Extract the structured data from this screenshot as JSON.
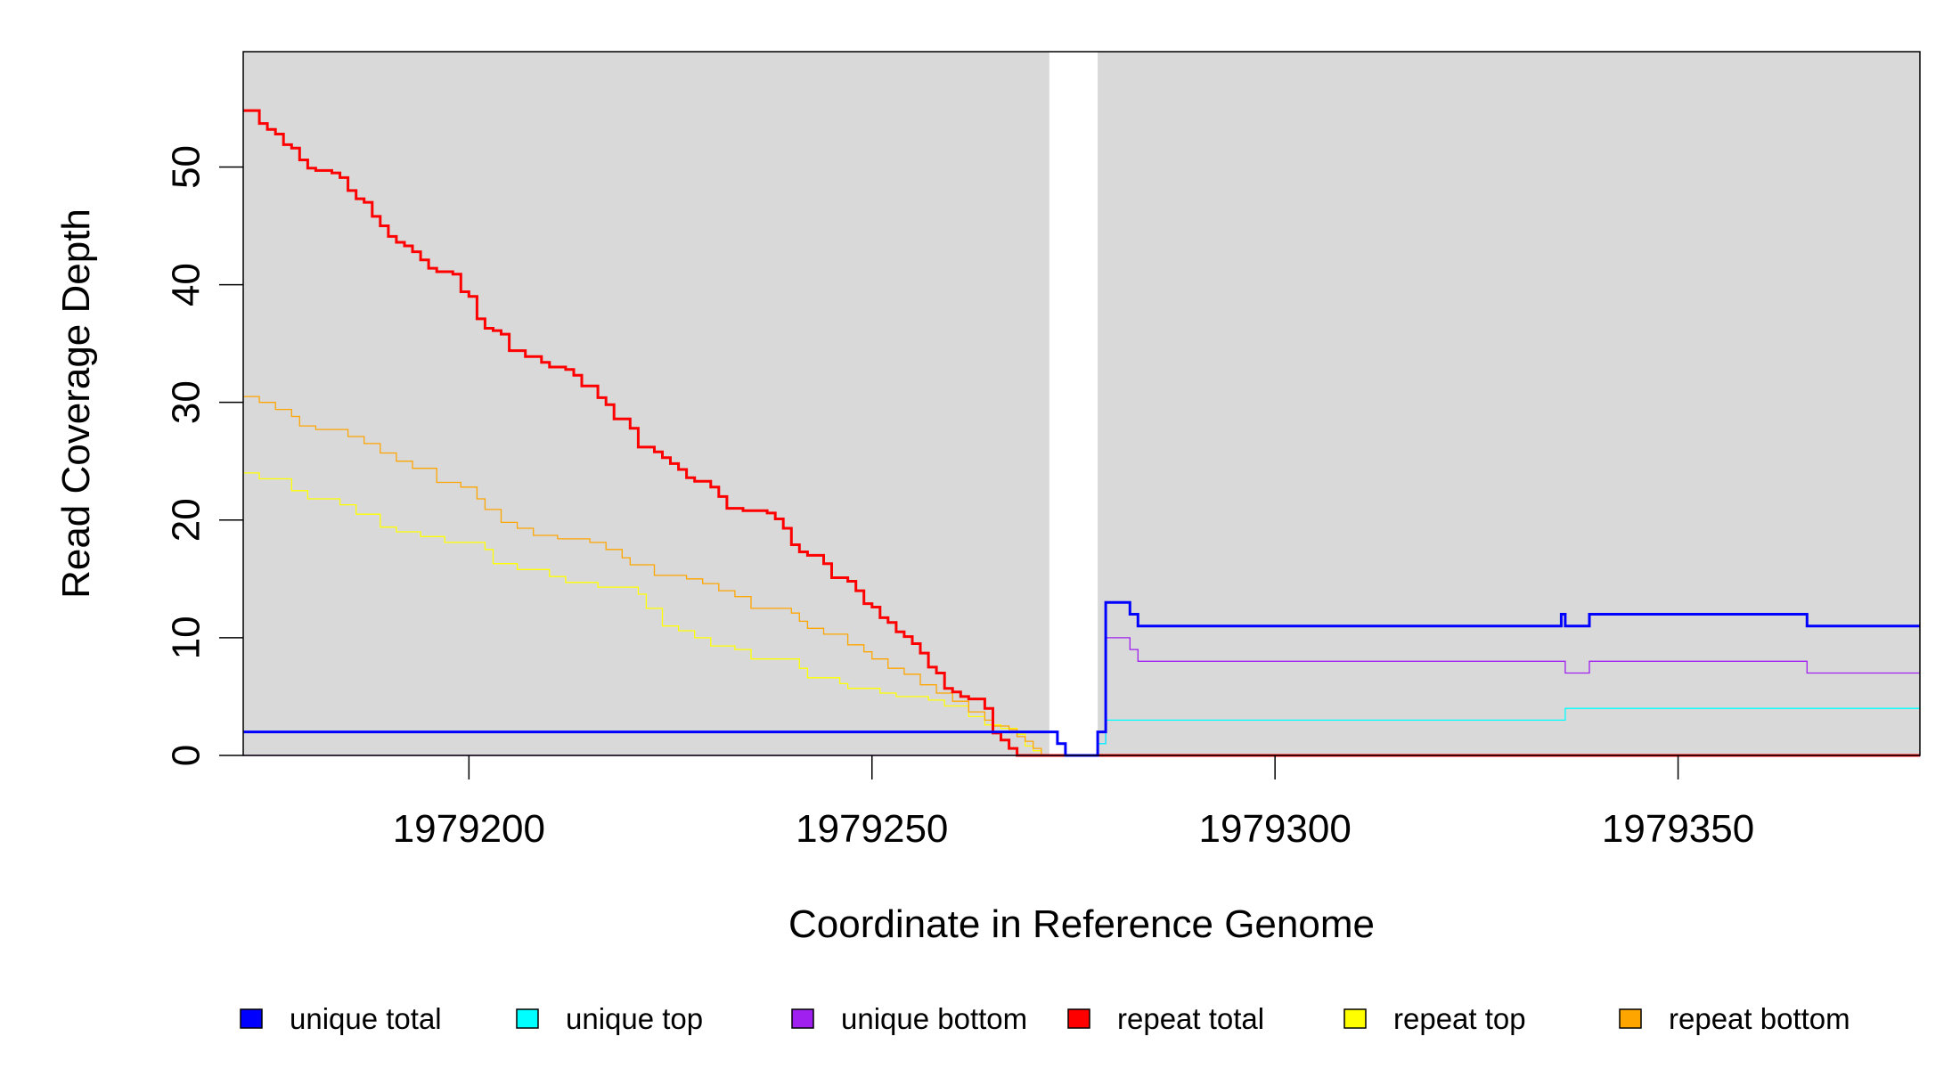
{
  "chart_data": {
    "type": "line",
    "step": true,
    "xlabel": "Coordinate in Reference Genome",
    "ylabel": "Read Coverage Depth",
    "xlim": [
      1979172,
      1979380
    ],
    "ylim": [
      0,
      59.8
    ],
    "x_ticks": [
      1979200,
      1979250,
      1979300,
      1979350
    ],
    "y_ticks": [
      0,
      10,
      20,
      30,
      40,
      50
    ],
    "plot_background": "#d9d9d9",
    "gap": [
      1979272,
      1979278
    ],
    "grid": false,
    "legend_position": "bottom",
    "series": [
      {
        "name": "repeat top",
        "color": "#ffff00",
        "width": 1.3,
        "points": [
          [
            1979172,
            24
          ],
          [
            1979174,
            23.5
          ],
          [
            1979178,
            22.5
          ],
          [
            1979180,
            21.8
          ],
          [
            1979184,
            21.3
          ],
          [
            1979186,
            20.5
          ],
          [
            1979189,
            19.4
          ],
          [
            1979191,
            19
          ],
          [
            1979194,
            18.6
          ],
          [
            1979197,
            18.1
          ],
          [
            1979202,
            17.5
          ],
          [
            1979203,
            16.3
          ],
          [
            1979206,
            15.8
          ],
          [
            1979210,
            15.2
          ],
          [
            1979212,
            14.7
          ],
          [
            1979216,
            14.3
          ],
          [
            1979221,
            13.7
          ],
          [
            1979222,
            12.5
          ],
          [
            1979224,
            11
          ],
          [
            1979226,
            10.6
          ],
          [
            1979228,
            10
          ],
          [
            1979230,
            9.3
          ],
          [
            1979233,
            9
          ],
          [
            1979235,
            8.2
          ],
          [
            1979241,
            7.4
          ],
          [
            1979242,
            6.6
          ],
          [
            1979246,
            6.1
          ],
          [
            1979247,
            5.7
          ],
          [
            1979251,
            5.3
          ],
          [
            1979253,
            5
          ],
          [
            1979257,
            4.7
          ],
          [
            1979259,
            4.2
          ],
          [
            1979262,
            3.3
          ],
          [
            1979264,
            2.6
          ],
          [
            1979266,
            2.3
          ],
          [
            1979268,
            1.8
          ],
          [
            1979269,
            0.8
          ],
          [
            1979270,
            0.4
          ],
          [
            1979271,
            0
          ],
          [
            1979380,
            0
          ]
        ]
      },
      {
        "name": "repeat bottom",
        "color": "#ffa500",
        "width": 1.3,
        "points": [
          [
            1979172,
            30.5
          ],
          [
            1979174,
            30
          ],
          [
            1979176,
            29.4
          ],
          [
            1979178,
            28.8
          ],
          [
            1979179,
            28
          ],
          [
            1979181,
            27.7
          ],
          [
            1979185,
            27.1
          ],
          [
            1979187,
            26.5
          ],
          [
            1979189,
            25.7
          ],
          [
            1979191,
            25
          ],
          [
            1979193,
            24.4
          ],
          [
            1979196,
            23.2
          ],
          [
            1979199,
            22.8
          ],
          [
            1979201,
            21.8
          ],
          [
            1979202,
            20.9
          ],
          [
            1979204,
            19.8
          ],
          [
            1979206,
            19.3
          ],
          [
            1979208,
            18.7
          ],
          [
            1979211,
            18.4
          ],
          [
            1979215,
            18.1
          ],
          [
            1979217,
            17.5
          ],
          [
            1979219,
            16.8
          ],
          [
            1979220,
            16.2
          ],
          [
            1979223,
            15.3
          ],
          [
            1979227,
            15
          ],
          [
            1979229,
            14.6
          ],
          [
            1979231,
            14
          ],
          [
            1979233,
            13.5
          ],
          [
            1979235,
            12.5
          ],
          [
            1979240,
            12.1
          ],
          [
            1979241,
            11.4
          ],
          [
            1979242,
            10.8
          ],
          [
            1979244,
            10.3
          ],
          [
            1979247,
            9.4
          ],
          [
            1979249,
            8.8
          ],
          [
            1979250,
            8.2
          ],
          [
            1979252,
            7.4
          ],
          [
            1979254,
            6.9
          ],
          [
            1979256,
            6
          ],
          [
            1979258,
            5.3
          ],
          [
            1979260,
            4.6
          ],
          [
            1979262,
            3.7
          ],
          [
            1979264,
            3
          ],
          [
            1979265,
            2.5
          ],
          [
            1979267,
            2.2
          ],
          [
            1979268,
            1.6
          ],
          [
            1979269,
            1.2
          ],
          [
            1979270,
            0.6
          ],
          [
            1979271,
            0
          ],
          [
            1979380,
            0
          ]
        ]
      },
      {
        "name": "repeat total",
        "color": "#ff0000",
        "width": 3,
        "points": [
          [
            1979172,
            54.8
          ],
          [
            1979174,
            53.7
          ],
          [
            1979175,
            53.2
          ],
          [
            1979176,
            52.8
          ],
          [
            1979177,
            51.9
          ],
          [
            1979178,
            51.6
          ],
          [
            1979179,
            50.6
          ],
          [
            1979180,
            49.9
          ],
          [
            1979181,
            49.7
          ],
          [
            1979183,
            49.5
          ],
          [
            1979184,
            49.1
          ],
          [
            1979185,
            48
          ],
          [
            1979186,
            47.3
          ],
          [
            1979187,
            47
          ],
          [
            1979188,
            45.8
          ],
          [
            1979189,
            45
          ],
          [
            1979190,
            44.1
          ],
          [
            1979191,
            43.6
          ],
          [
            1979192,
            43.3
          ],
          [
            1979193,
            42.8
          ],
          [
            1979194,
            42.1
          ],
          [
            1979195,
            41.4
          ],
          [
            1979196,
            41.1
          ],
          [
            1979198,
            40.9
          ],
          [
            1979199,
            39.4
          ],
          [
            1979200,
            39
          ],
          [
            1979201,
            37.1
          ],
          [
            1979202,
            36.3
          ],
          [
            1979203,
            36.1
          ],
          [
            1979204,
            35.8
          ],
          [
            1979205,
            34.4
          ],
          [
            1979207,
            33.9
          ],
          [
            1979209,
            33.4
          ],
          [
            1979210,
            33
          ],
          [
            1979212,
            32.8
          ],
          [
            1979213,
            32.3
          ],
          [
            1979214,
            31.4
          ],
          [
            1979216,
            30.4
          ],
          [
            1979217,
            29.8
          ],
          [
            1979218,
            28.6
          ],
          [
            1979220,
            27.8
          ],
          [
            1979221,
            26.2
          ],
          [
            1979223,
            25.8
          ],
          [
            1979224,
            25.3
          ],
          [
            1979225,
            24.8
          ],
          [
            1979226,
            24.3
          ],
          [
            1979227,
            23.6
          ],
          [
            1979228,
            23.3
          ],
          [
            1979230,
            22.8
          ],
          [
            1979231,
            22
          ],
          [
            1979232,
            21
          ],
          [
            1979234,
            20.8
          ],
          [
            1979237,
            20.6
          ],
          [
            1979238,
            20.1
          ],
          [
            1979239,
            19.3
          ],
          [
            1979240,
            17.9
          ],
          [
            1979241,
            17.3
          ],
          [
            1979242,
            17
          ],
          [
            1979244,
            16.3
          ],
          [
            1979245,
            15.1
          ],
          [
            1979247,
            14.8
          ],
          [
            1979248,
            14
          ],
          [
            1979249,
            12.9
          ],
          [
            1979250,
            12.6
          ],
          [
            1979251,
            11.7
          ],
          [
            1979252,
            11.3
          ],
          [
            1979253,
            10.5
          ],
          [
            1979254,
            10.1
          ],
          [
            1979255,
            9.5
          ],
          [
            1979256,
            8.7
          ],
          [
            1979257,
            7.5
          ],
          [
            1979258,
            7
          ],
          [
            1979259,
            5.7
          ],
          [
            1979260,
            5.4
          ],
          [
            1979261,
            5
          ],
          [
            1979262,
            4.8
          ],
          [
            1979264,
            4
          ],
          [
            1979265,
            1.9
          ],
          [
            1979266,
            1.3
          ],
          [
            1979267,
            0.6
          ],
          [
            1979268,
            0
          ],
          [
            1979380,
            0
          ]
        ]
      },
      {
        "name": "unique bottom",
        "color": "#a020f0",
        "width": 1.3,
        "points": [
          [
            1979172,
            0
          ],
          [
            1979277,
            0
          ],
          [
            1979278,
            1
          ],
          [
            1979279,
            10
          ],
          [
            1979282,
            9
          ],
          [
            1979283,
            8
          ],
          [
            1979335,
            8
          ],
          [
            1979336,
            7
          ],
          [
            1979339,
            8
          ],
          [
            1979365,
            8
          ],
          [
            1979366,
            7
          ],
          [
            1979380,
            7
          ]
        ]
      },
      {
        "name": "unique top",
        "color": "#00ffff",
        "width": 1.3,
        "points": [
          [
            1979172,
            2
          ],
          [
            1979272,
            2
          ],
          [
            1979273,
            1
          ],
          [
            1979274,
            0
          ],
          [
            1979277,
            0
          ],
          [
            1979278,
            1
          ],
          [
            1979279,
            3
          ],
          [
            1979335,
            3
          ],
          [
            1979336,
            4
          ],
          [
            1979380,
            4
          ]
        ]
      },
      {
        "name": "unique total",
        "color": "#0000ff",
        "width": 3,
        "points": [
          [
            1979172,
            2
          ],
          [
            1979272,
            2
          ],
          [
            1979273,
            1
          ],
          [
            1979274,
            0
          ],
          [
            1979277,
            0
          ],
          [
            1979278,
            2
          ],
          [
            1979279,
            13
          ],
          [
            1979282,
            12
          ],
          [
            1979283,
            11
          ],
          [
            1979335,
            11
          ],
          [
            1979335.5,
            12
          ],
          [
            1979336,
            11
          ],
          [
            1979339,
            12
          ],
          [
            1979365,
            12
          ],
          [
            1979366,
            11
          ],
          [
            1979380,
            11
          ]
        ]
      }
    ],
    "legend": [
      {
        "name": "unique total",
        "color": "#0000ff"
      },
      {
        "name": "unique top",
        "color": "#00ffff"
      },
      {
        "name": "unique bottom",
        "color": "#a020f0"
      },
      {
        "name": "repeat total",
        "color": "#ff0000"
      },
      {
        "name": "repeat top",
        "color": "#ffff00"
      },
      {
        "name": "repeat bottom",
        "color": "#ffa500"
      }
    ]
  }
}
